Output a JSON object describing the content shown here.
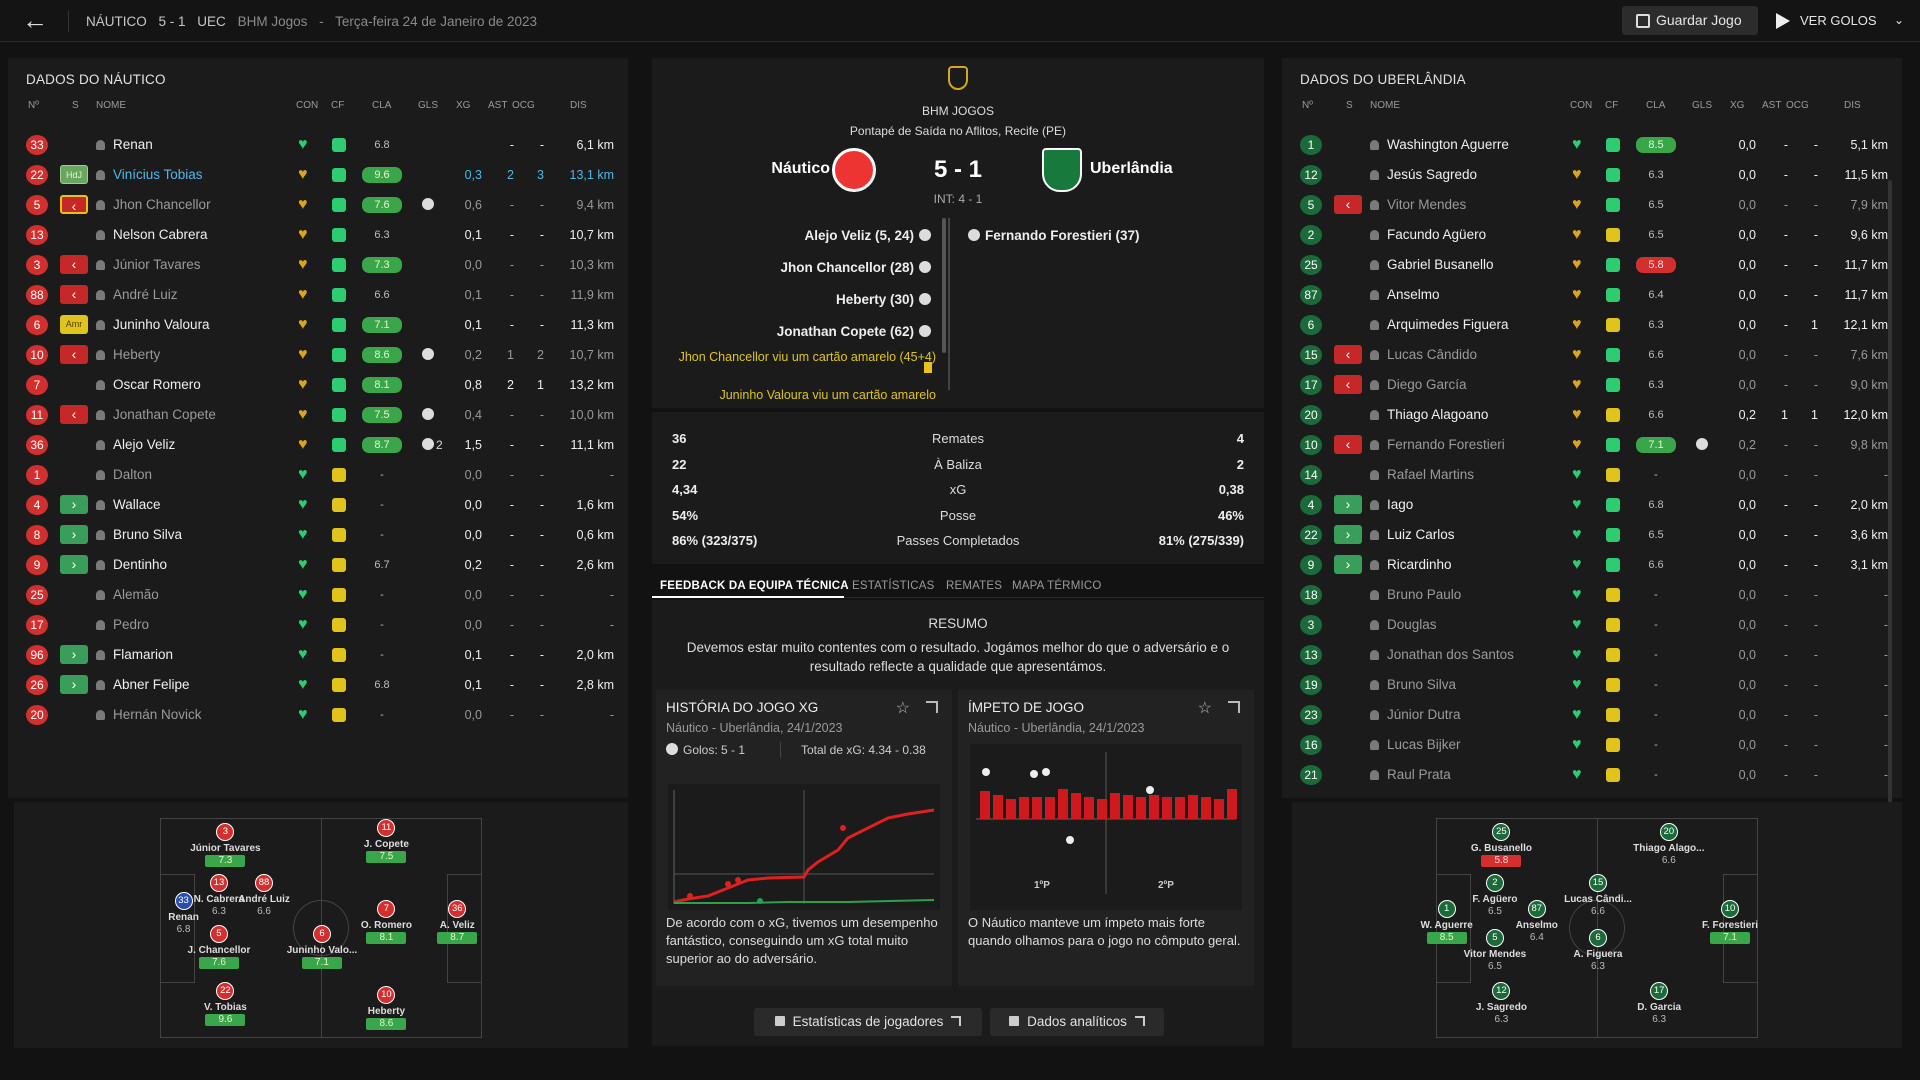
{
  "header": {
    "home": "NÁUTICO",
    "score": "5 - 1",
    "away": "UEC",
    "competition": "BHM Jogos",
    "sep": "-",
    "date": "Terça-feira 24 de Janeiro de 2023",
    "save_label": "Guardar Jogo",
    "goals_label": "VER GOLOS"
  },
  "columns": {
    "no": "Nº",
    "s": "S",
    "name": "NOME",
    "con": "CON",
    "cf": "CF",
    "cla": "CLA",
    "gls": "GLS",
    "xg": "XG",
    "ast": "AST",
    "ocg": "OCG",
    "dis": "DIS"
  },
  "left_panel": {
    "title": "DADOS DO NÁUTICO",
    "players": [
      {
        "no": "33",
        "status": "",
        "name": "Renan",
        "con": "g",
        "cf": "g",
        "cla": "6.8",
        "cla_style": "",
        "gls": "",
        "xg": "",
        "ast": "-",
        "ocg": "-",
        "dis": "6,1 km",
        "style": "bold"
      },
      {
        "no": "22",
        "status": "HdJ",
        "name": "Vinícius Tobias",
        "con": "a",
        "cf": "g",
        "cla": "9.6",
        "cla_style": "g",
        "gls": "",
        "xg": "0,3",
        "ast": "2",
        "ocg": "3",
        "dis": "13,1 km",
        "style": "hi"
      },
      {
        "no": "5",
        "status": "out-y",
        "name": "Jhon Chancellor",
        "con": "a",
        "cf": "g",
        "cla": "7.6",
        "cla_style": "g",
        "gls": "1",
        "xg": "0,6",
        "ast": "-",
        "ocg": "-",
        "dis": "9,4 km",
        "style": "dim"
      },
      {
        "no": "13",
        "status": "",
        "name": "Nelson Cabrera",
        "con": "a",
        "cf": "g",
        "cla": "6.3",
        "cla_style": "",
        "gls": "",
        "xg": "0,1",
        "ast": "-",
        "ocg": "-",
        "dis": "10,7 km",
        "style": "bold"
      },
      {
        "no": "3",
        "status": "out",
        "name": "Júnior Tavares",
        "con": "a",
        "cf": "g",
        "cla": "7.3",
        "cla_style": "g",
        "gls": "",
        "xg": "0,0",
        "ast": "-",
        "ocg": "-",
        "dis": "10,3 km",
        "style": "dim"
      },
      {
        "no": "88",
        "status": "out",
        "name": "André Luiz",
        "con": "a",
        "cf": "g",
        "cla": "6.6",
        "cla_style": "",
        "gls": "",
        "xg": "0,1",
        "ast": "-",
        "ocg": "-",
        "dis": "11,9 km",
        "style": "dim"
      },
      {
        "no": "6",
        "status": "Amr",
        "name": "Juninho Valoura",
        "con": "a",
        "cf": "g",
        "cla": "7.1",
        "cla_style": "g",
        "gls": "",
        "xg": "0,1",
        "ast": "-",
        "ocg": "-",
        "dis": "11,3 km",
        "style": "bold"
      },
      {
        "no": "10",
        "status": "out",
        "name": "Heberty",
        "con": "a",
        "cf": "g",
        "cla": "8.6",
        "cla_style": "g",
        "gls": "1",
        "xg": "0,2",
        "ast": "1",
        "ocg": "2",
        "dis": "10,7 km",
        "style": "dim"
      },
      {
        "no": "7",
        "status": "",
        "name": "Oscar Romero",
        "con": "a",
        "cf": "g",
        "cla": "8.1",
        "cla_style": "g",
        "gls": "",
        "xg": "0,8",
        "ast": "2",
        "ocg": "1",
        "dis": "13,2 km",
        "style": "bold"
      },
      {
        "no": "11",
        "status": "out",
        "name": "Jonathan Copete",
        "con": "a",
        "cf": "g",
        "cla": "7.5",
        "cla_style": "g",
        "gls": "1",
        "xg": "0,4",
        "ast": "-",
        "ocg": "-",
        "dis": "10,0 km",
        "style": "dim"
      },
      {
        "no": "36",
        "status": "",
        "name": "Alejo Veliz",
        "con": "a",
        "cf": "g",
        "cla": "8.7",
        "cla_style": "g",
        "gls": "2",
        "xg": "1,5",
        "ast": "-",
        "ocg": "-",
        "dis": "11,1 km",
        "style": "bold"
      },
      {
        "no": "1",
        "status": "",
        "name": "Dalton",
        "con": "g",
        "cf": "y",
        "cla": "-",
        "cla_style": "",
        "gls": "",
        "xg": "0,0",
        "ast": "-",
        "ocg": "-",
        "dis": "-",
        "style": "dim"
      },
      {
        "no": "4",
        "status": "in",
        "name": "Wallace",
        "con": "g",
        "cf": "y",
        "cla": "-",
        "cla_style": "",
        "gls": "",
        "xg": "0,0",
        "ast": "-",
        "ocg": "-",
        "dis": "1,6 km",
        "style": "bold"
      },
      {
        "no": "8",
        "status": "in",
        "name": "Bruno Silva",
        "con": "g",
        "cf": "y",
        "cla": "-",
        "cla_style": "",
        "gls": "",
        "xg": "0,0",
        "ast": "-",
        "ocg": "-",
        "dis": "0,6 km",
        "style": "bold"
      },
      {
        "no": "9",
        "status": "in",
        "name": "Dentinho",
        "con": "g",
        "cf": "y",
        "cla": "6.7",
        "cla_style": "",
        "gls": "",
        "xg": "0,2",
        "ast": "-",
        "ocg": "-",
        "dis": "2,6 km",
        "style": "bold"
      },
      {
        "no": "25",
        "status": "",
        "name": "Alemão",
        "con": "g",
        "cf": "y",
        "cla": "-",
        "cla_style": "",
        "gls": "",
        "xg": "0,0",
        "ast": "-",
        "ocg": "-",
        "dis": "-",
        "style": "dim"
      },
      {
        "no": "17",
        "status": "",
        "name": "Pedro",
        "con": "g",
        "cf": "y",
        "cla": "-",
        "cla_style": "",
        "gls": "",
        "xg": "0,0",
        "ast": "-",
        "ocg": "-",
        "dis": "-",
        "style": "dim"
      },
      {
        "no": "96",
        "status": "in",
        "name": "Flamarion",
        "con": "g",
        "cf": "y",
        "cla": "-",
        "cla_style": "",
        "gls": "",
        "xg": "0,1",
        "ast": "-",
        "ocg": "-",
        "dis": "2,0 km",
        "style": "bold"
      },
      {
        "no": "26",
        "status": "in",
        "name": "Abner Felipe",
        "con": "g",
        "cf": "y",
        "cla": "6.8",
        "cla_style": "",
        "gls": "",
        "xg": "0,1",
        "ast": "-",
        "ocg": "-",
        "dis": "2,8 km",
        "style": "bold"
      },
      {
        "no": "20",
        "status": "",
        "name": "Hernán Novick",
        "con": "g",
        "cf": "y",
        "cla": "-",
        "cla_style": "",
        "gls": "",
        "xg": "0,0",
        "ast": "-",
        "ocg": "-",
        "dis": "-",
        "style": "dim"
      }
    ]
  },
  "right_panel": {
    "title": "DADOS DO UBERLÂNDIA",
    "players": [
      {
        "no": "1",
        "status": "",
        "name": "Washington Aguerre",
        "con": "g",
        "cf": "g",
        "cla": "8.5",
        "cla_style": "g",
        "gls": "",
        "xg": "0,0",
        "ast": "-",
        "ocg": "-",
        "dis": "5,1 km",
        "style": "bold"
      },
      {
        "no": "12",
        "status": "",
        "name": "Jesús Sagredo",
        "con": "a",
        "cf": "g",
        "cla": "6.3",
        "cla_style": "",
        "gls": "",
        "xg": "0,0",
        "ast": "-",
        "ocg": "-",
        "dis": "11,5 km",
        "style": "bold"
      },
      {
        "no": "5",
        "status": "out",
        "name": "Vitor Mendes",
        "con": "a",
        "cf": "g",
        "cla": "6.5",
        "cla_style": "",
        "gls": "",
        "xg": "0,0",
        "ast": "-",
        "ocg": "-",
        "dis": "7,9 km",
        "style": "dim"
      },
      {
        "no": "2",
        "status": "",
        "name": "Facundo Agüero",
        "con": "a",
        "cf": "y",
        "cla": "6.5",
        "cla_style": "",
        "gls": "",
        "xg": "0,0",
        "ast": "-",
        "ocg": "-",
        "dis": "9,6 km",
        "style": "bold"
      },
      {
        "no": "25",
        "status": "",
        "name": "Gabriel Busanello",
        "con": "a",
        "cf": "g",
        "cla": "5.8",
        "cla_style": "r",
        "gls": "",
        "xg": "0,0",
        "ast": "-",
        "ocg": "-",
        "dis": "11,7 km",
        "style": "bold"
      },
      {
        "no": "87",
        "status": "",
        "name": "Anselmo",
        "con": "a",
        "cf": "g",
        "cla": "6.4",
        "cla_style": "",
        "gls": "",
        "xg": "0,0",
        "ast": "-",
        "ocg": "-",
        "dis": "11,7 km",
        "style": "bold"
      },
      {
        "no": "6",
        "status": "",
        "name": "Arquimedes Figuera",
        "con": "a",
        "cf": "y",
        "cla": "6.3",
        "cla_style": "",
        "gls": "",
        "xg": "0,0",
        "ast": "-",
        "ocg": "1",
        "dis": "12,1 km",
        "style": "bold"
      },
      {
        "no": "15",
        "status": "out",
        "name": "Lucas Cândido",
        "con": "a",
        "cf": "g",
        "cla": "6.6",
        "cla_style": "",
        "gls": "",
        "xg": "0,0",
        "ast": "-",
        "ocg": "-",
        "dis": "7,6 km",
        "style": "dim"
      },
      {
        "no": "17",
        "status": "out",
        "name": "Diego García",
        "con": "a",
        "cf": "g",
        "cla": "6.3",
        "cla_style": "",
        "gls": "",
        "xg": "0,0",
        "ast": "-",
        "ocg": "-",
        "dis": "9,0 km",
        "style": "dim"
      },
      {
        "no": "20",
        "status": "",
        "name": "Thiago Alagoano",
        "con": "a",
        "cf": "y",
        "cla": "6.6",
        "cla_style": "",
        "gls": "",
        "xg": "0,2",
        "ast": "1",
        "ocg": "1",
        "dis": "12,0 km",
        "style": "bold"
      },
      {
        "no": "10",
        "status": "out",
        "name": "Fernando Forestieri",
        "con": "a",
        "cf": "g",
        "cla": "7.1",
        "cla_style": "g",
        "gls": "1",
        "xg": "0,2",
        "ast": "-",
        "ocg": "-",
        "dis": "9,8 km",
        "style": "dim"
      },
      {
        "no": "14",
        "status": "",
        "name": "Rafael Martins",
        "con": "g",
        "cf": "y",
        "cla": "-",
        "cla_style": "",
        "gls": "",
        "xg": "0,0",
        "ast": "-",
        "ocg": "-",
        "dis": "-",
        "style": "dim"
      },
      {
        "no": "4",
        "status": "in",
        "name": "Iago",
        "con": "g",
        "cf": "g",
        "cla": "6.8",
        "cla_style": "",
        "gls": "",
        "xg": "0,0",
        "ast": "-",
        "ocg": "-",
        "dis": "2,0 km",
        "style": "bold"
      },
      {
        "no": "22",
        "status": "in",
        "name": "Luiz Carlos",
        "con": "g",
        "cf": "g",
        "cla": "6.5",
        "cla_style": "",
        "gls": "",
        "xg": "0,0",
        "ast": "-",
        "ocg": "-",
        "dis": "3,6 km",
        "style": "bold"
      },
      {
        "no": "9",
        "status": "in",
        "name": "Ricardinho",
        "con": "g",
        "cf": "g",
        "cla": "6.6",
        "cla_style": "",
        "gls": "",
        "xg": "0,0",
        "ast": "-",
        "ocg": "-",
        "dis": "3,1 km",
        "style": "bold"
      },
      {
        "no": "18",
        "status": "",
        "name": "Bruno Paulo",
        "con": "g",
        "cf": "y",
        "cla": "-",
        "cla_style": "",
        "gls": "",
        "xg": "0,0",
        "ast": "-",
        "ocg": "-",
        "dis": "-",
        "style": "dim"
      },
      {
        "no": "3",
        "status": "",
        "name": "Douglas",
        "con": "g",
        "cf": "y",
        "cla": "-",
        "cla_style": "",
        "gls": "",
        "xg": "0,0",
        "ast": "-",
        "ocg": "-",
        "dis": "-",
        "style": "dim"
      },
      {
        "no": "13",
        "status": "",
        "name": "Jonathan dos Santos",
        "con": "g",
        "cf": "y",
        "cla": "-",
        "cla_style": "",
        "gls": "",
        "xg": "0,0",
        "ast": "-",
        "ocg": "-",
        "dis": "-",
        "style": "dim"
      },
      {
        "no": "19",
        "status": "",
        "name": "Bruno Silva",
        "con": "g",
        "cf": "y",
        "cla": "-",
        "cla_style": "",
        "gls": "",
        "xg": "0,0",
        "ast": "-",
        "ocg": "-",
        "dis": "-",
        "style": "dim"
      },
      {
        "no": "23",
        "status": "",
        "name": "Júnior Dutra",
        "con": "g",
        "cf": "y",
        "cla": "-",
        "cla_style": "",
        "gls": "",
        "xg": "0,0",
        "ast": "-",
        "ocg": "-",
        "dis": "-",
        "style": "dim"
      },
      {
        "no": "16",
        "status": "",
        "name": "Lucas Bijker",
        "con": "g",
        "cf": "y",
        "cla": "-",
        "cla_style": "",
        "gls": "",
        "xg": "0,0",
        "ast": "-",
        "ocg": "-",
        "dis": "-",
        "style": "dim"
      },
      {
        "no": "21",
        "status": "",
        "name": "Raul Prata",
        "con": "g",
        "cf": "y",
        "cla": "-",
        "cla_style": "",
        "gls": "",
        "xg": "0,0",
        "ast": "-",
        "ocg": "-",
        "dis": "-",
        "style": "dim"
      }
    ]
  },
  "match": {
    "competition": "BHM JOGOS",
    "venue": "Pontapé de Saída no Aflitos, Recife (PE)",
    "home": "Náutico",
    "away": "Uberlândia",
    "score": "5 - 1",
    "ht": "INT: 4 - 1",
    "home_events": [
      "Alejo Veliz (5, 24)",
      "Jhon Chancellor (28)",
      "Heberty (30)",
      "Jonathan Copete (62)"
    ],
    "away_events": [
      "Fernando Forestieri (37)"
    ],
    "cards": [
      "Jhon Chancellor viu um cartão amarelo (45+4)",
      "Juninho Valoura viu um cartão amarelo"
    ]
  },
  "stats": [
    {
      "l": "36",
      "m": "Remates",
      "r": "4"
    },
    {
      "l": "22",
      "m": "À Baliza",
      "r": "2"
    },
    {
      "l": "4,34",
      "m": "xG",
      "r": "0,38"
    },
    {
      "l": "54%",
      "m": "Posse",
      "r": "46%"
    },
    {
      "l": "86% (323/375)",
      "m": "Passes Completados",
      "r": "81% (275/339)"
    }
  ],
  "tabs": [
    "FEEDBACK DA EQUIPA TÉCNICA",
    "ESTATÍSTICAS",
    "REMATES",
    "MAPA TÉRMICO"
  ],
  "feedback": {
    "title": "RESUMO",
    "text": "Devemos estar muito contentes com o resultado. Jogámos melhor do que o adversário e o resultado reflecte a qualidade que apresentámos."
  },
  "xg_card": {
    "title": "HISTÓRIA DO JOGO XG",
    "sub": "Náutico - Uberlândia, 24/1/2023",
    "goals": "Golos: 5 - 1",
    "total": "Total de xG: 4.34 - 0.38",
    "desc": "De acordo com o xG, tivemos um desempenho fantástico, conseguindo um xG total muito superior ao do adversário."
  },
  "mom_card": {
    "title": "ÍMPETO DE JOGO",
    "sub": "Náutico - Uberlândia, 24/1/2023",
    "p1": "1ºP",
    "p2": "2ºP",
    "desc": "O Náutico manteve um ímpeto mais forte quando olhamos para o jogo no cômputo geral."
  },
  "buttons": {
    "players": "Estatísticas de jogadores",
    "analytics": "Dados analíticos"
  },
  "left_pitch": [
    {
      "n": "Renan",
      "no": "33",
      "r": "6.8",
      "rs": "",
      "x": 7,
      "y": 33,
      "col": "blu"
    },
    {
      "n": "Júnior Tavares",
      "no": "3",
      "r": "7.3",
      "rs": "g",
      "x": 20,
      "y": 2,
      "col": "red"
    },
    {
      "n": "N. Cabrera",
      "no": "13",
      "r": "6.3",
      "rs": "",
      "x": 18,
      "y": 25,
      "col": "red"
    },
    {
      "n": "André Luiz",
      "no": "88",
      "r": "6.6",
      "rs": "",
      "x": 32,
      "y": 25,
      "col": "red"
    },
    {
      "n": "J. Chancellor",
      "no": "5",
      "r": "7.6",
      "rs": "g",
      "x": 18,
      "y": 48,
      "col": "red"
    },
    {
      "n": "V. Tobias",
      "no": "22",
      "r": "9.6",
      "rs": "g",
      "x": 20,
      "y": 74,
      "col": "red"
    },
    {
      "n": "Juninho Valo...",
      "no": "6",
      "r": "7.1",
      "rs": "g",
      "x": 50,
      "y": 48,
      "col": "red"
    },
    {
      "n": "J. Copete",
      "no": "11",
      "r": "7.5",
      "rs": "g",
      "x": 70,
      "y": 0,
      "col": "red"
    },
    {
      "n": "O. Romero",
      "no": "7",
      "r": "8.1",
      "rs": "g",
      "x": 70,
      "y": 37,
      "col": "red"
    },
    {
      "n": "Heberty",
      "no": "10",
      "r": "8.6",
      "rs": "g",
      "x": 70,
      "y": 76,
      "col": "red"
    },
    {
      "n": "A. Veliz",
      "no": "36",
      "r": "8.7",
      "rs": "g",
      "x": 92,
      "y": 37,
      "col": "red"
    }
  ],
  "right_pitch": [
    {
      "n": "W. Aguerre",
      "no": "1",
      "r": "8.5",
      "rs": "g",
      "x": 3,
      "y": 37,
      "col": "grn"
    },
    {
      "n": "G. Busanello",
      "no": "25",
      "r": "5.8",
      "rs": "red",
      "x": 20,
      "y": 2,
      "col": "grn"
    },
    {
      "n": "F. Agüero",
      "no": "2",
      "r": "6.5",
      "rs": "",
      "x": 18,
      "y": 25,
      "col": "grn"
    },
    {
      "n": "Vitor Mendes",
      "no": "5",
      "r": "6.5",
      "rs": "",
      "x": 18,
      "y": 50,
      "col": "grn"
    },
    {
      "n": "J. Sagredo",
      "no": "12",
      "r": "6.3",
      "rs": "",
      "x": 20,
      "y": 74,
      "col": "grn"
    },
    {
      "n": "Anselmo",
      "no": "87",
      "r": "6.4",
      "rs": "",
      "x": 31,
      "y": 37,
      "col": "grn"
    },
    {
      "n": "Lucas Cândi...",
      "no": "15",
      "r": "6.6",
      "rs": "",
      "x": 50,
      "y": 25,
      "col": "grn"
    },
    {
      "n": "A. Figuera",
      "no": "6",
      "r": "6.3",
      "rs": "",
      "x": 50,
      "y": 50,
      "col": "grn"
    },
    {
      "n": "Thiago Alago...",
      "no": "20",
      "r": "6.6",
      "rs": "",
      "x": 72,
      "y": 2,
      "col": "grn"
    },
    {
      "n": "D. Garcia",
      "no": "17",
      "r": "6.3",
      "rs": "",
      "x": 69,
      "y": 74,
      "col": "grn"
    },
    {
      "n": "F. Forestieri",
      "no": "10",
      "r": "7.1",
      "rs": "g",
      "x": 91,
      "y": 37,
      "col": "grn"
    }
  ]
}
